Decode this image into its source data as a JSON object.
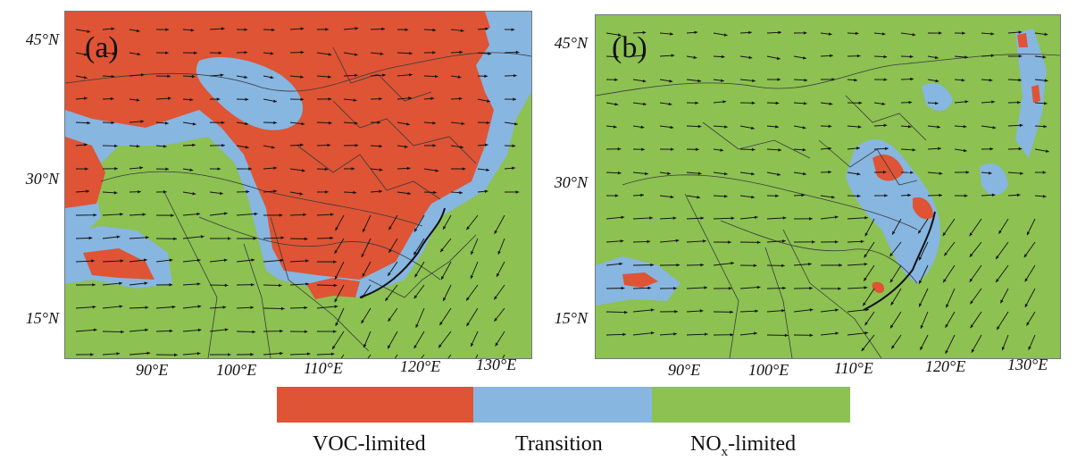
{
  "colors": {
    "voc": "#de5435",
    "transition": "#87b6e0",
    "nox": "#8dc152",
    "boundary": "#3a3a3a",
    "arrow": "#111111"
  },
  "panels": [
    {
      "id": "a",
      "label": "(a)"
    },
    {
      "id": "b",
      "label": "(b)"
    }
  ],
  "lat_ticks": [
    "45°N",
    "30°N",
    "15°N"
  ],
  "lon_ticks": [
    "90°E",
    "100°E",
    "110°E",
    "120°E",
    "130°E"
  ],
  "legend": {
    "voc_label": "VOC-limited",
    "transition_label": "Transition",
    "nox_label_main": "NO",
    "nox_label_sub": "x",
    "nox_label_suffix": "-limited"
  }
}
